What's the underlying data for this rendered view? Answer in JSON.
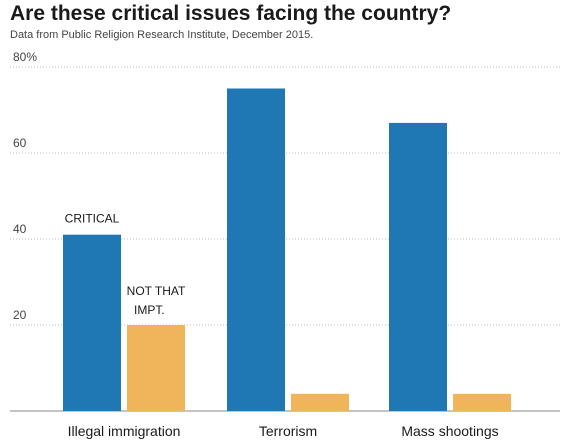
{
  "chart_data": {
    "type": "bar",
    "title": "Are these critical issues facing the country?",
    "subtitle": "Data from Public Religion Research Institute, December 2015.",
    "categories": [
      "Illegal immigration",
      "Terrorism",
      "Mass shootings"
    ],
    "series": [
      {
        "name": "CRITICAL",
        "values": [
          41,
          75,
          67
        ],
        "color": "#1f77b4"
      },
      {
        "name": "NOT THAT IMPT.",
        "values": [
          20,
          4,
          4
        ],
        "color": "#f0b45a"
      }
    ],
    "ylim": [
      0,
      80
    ],
    "yticks": [
      0,
      20,
      40,
      60,
      80
    ],
    "ytick_labels": [
      "",
      "20",
      "40",
      "60",
      "80%"
    ],
    "grid": true,
    "annotations": [
      {
        "text": "CRITICAL",
        "series": 0,
        "category": 0
      },
      {
        "text": "NOT THAT",
        "series": 1,
        "category": 0
      },
      {
        "text": "IMPT.",
        "series": 1,
        "category": 0
      }
    ]
  }
}
